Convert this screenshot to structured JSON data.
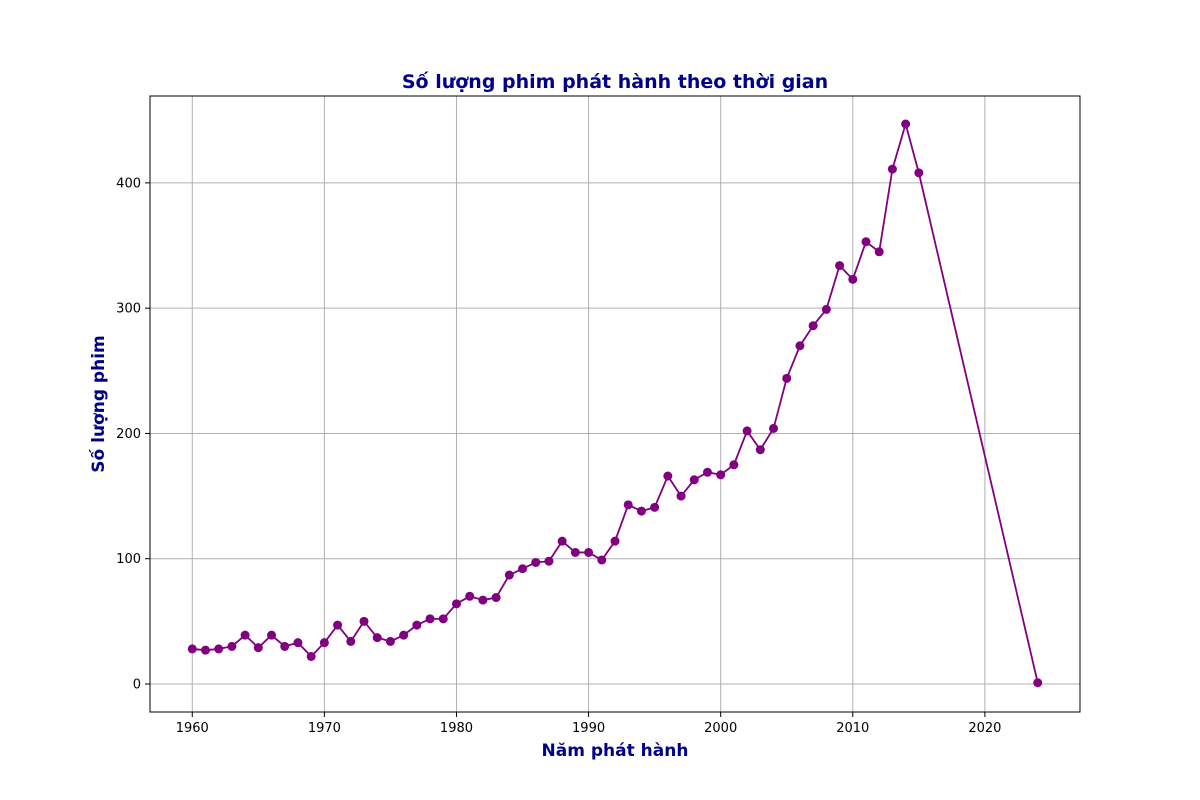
{
  "colors": {
    "line": "#800080",
    "marker": "#800080",
    "title": "#00008b",
    "grid": "#b0b0b0",
    "frame": "#000000"
  },
  "chart_data": {
    "type": "line",
    "title": "Số lượng phim phát hành theo thời gian",
    "xlabel": "Năm phát hành",
    "ylabel": "Số lượng phim",
    "xlim": [
      1956.8,
      2027.2
    ],
    "ylim": [
      -22.35,
      469.35
    ],
    "xticks": [
      1960,
      1970,
      1980,
      1990,
      2000,
      2010,
      2020
    ],
    "yticks": [
      0,
      100,
      200,
      300,
      400
    ],
    "grid": true,
    "legend": "none",
    "series": [
      {
        "marker": "circle",
        "x": [
          1960,
          1961,
          1962,
          1963,
          1964,
          1965,
          1966,
          1967,
          1968,
          1969,
          1970,
          1971,
          1972,
          1973,
          1974,
          1975,
          1976,
          1977,
          1978,
          1979,
          1980,
          1981,
          1982,
          1983,
          1984,
          1985,
          1986,
          1987,
          1988,
          1989,
          1990,
          1991,
          1992,
          1993,
          1994,
          1995,
          1996,
          1997,
          1998,
          1999,
          2000,
          2001,
          2002,
          2003,
          2004,
          2005,
          2006,
          2007,
          2008,
          2009,
          2010,
          2011,
          2012,
          2013,
          2014,
          2015,
          2024
        ],
        "y": [
          28,
          27,
          28,
          30,
          39,
          29,
          39,
          30,
          33,
          22,
          33,
          47,
          34,
          50,
          37,
          34,
          39,
          47,
          52,
          52,
          64,
          70,
          67,
          69,
          87,
          92,
          97,
          98,
          114,
          105,
          105,
          99,
          114,
          143,
          138,
          141,
          166,
          150,
          163,
          169,
          167,
          175,
          202,
          187,
          204,
          244,
          270,
          286,
          299,
          334,
          323,
          353,
          345,
          411,
          447,
          408,
          1
        ]
      }
    ]
  }
}
